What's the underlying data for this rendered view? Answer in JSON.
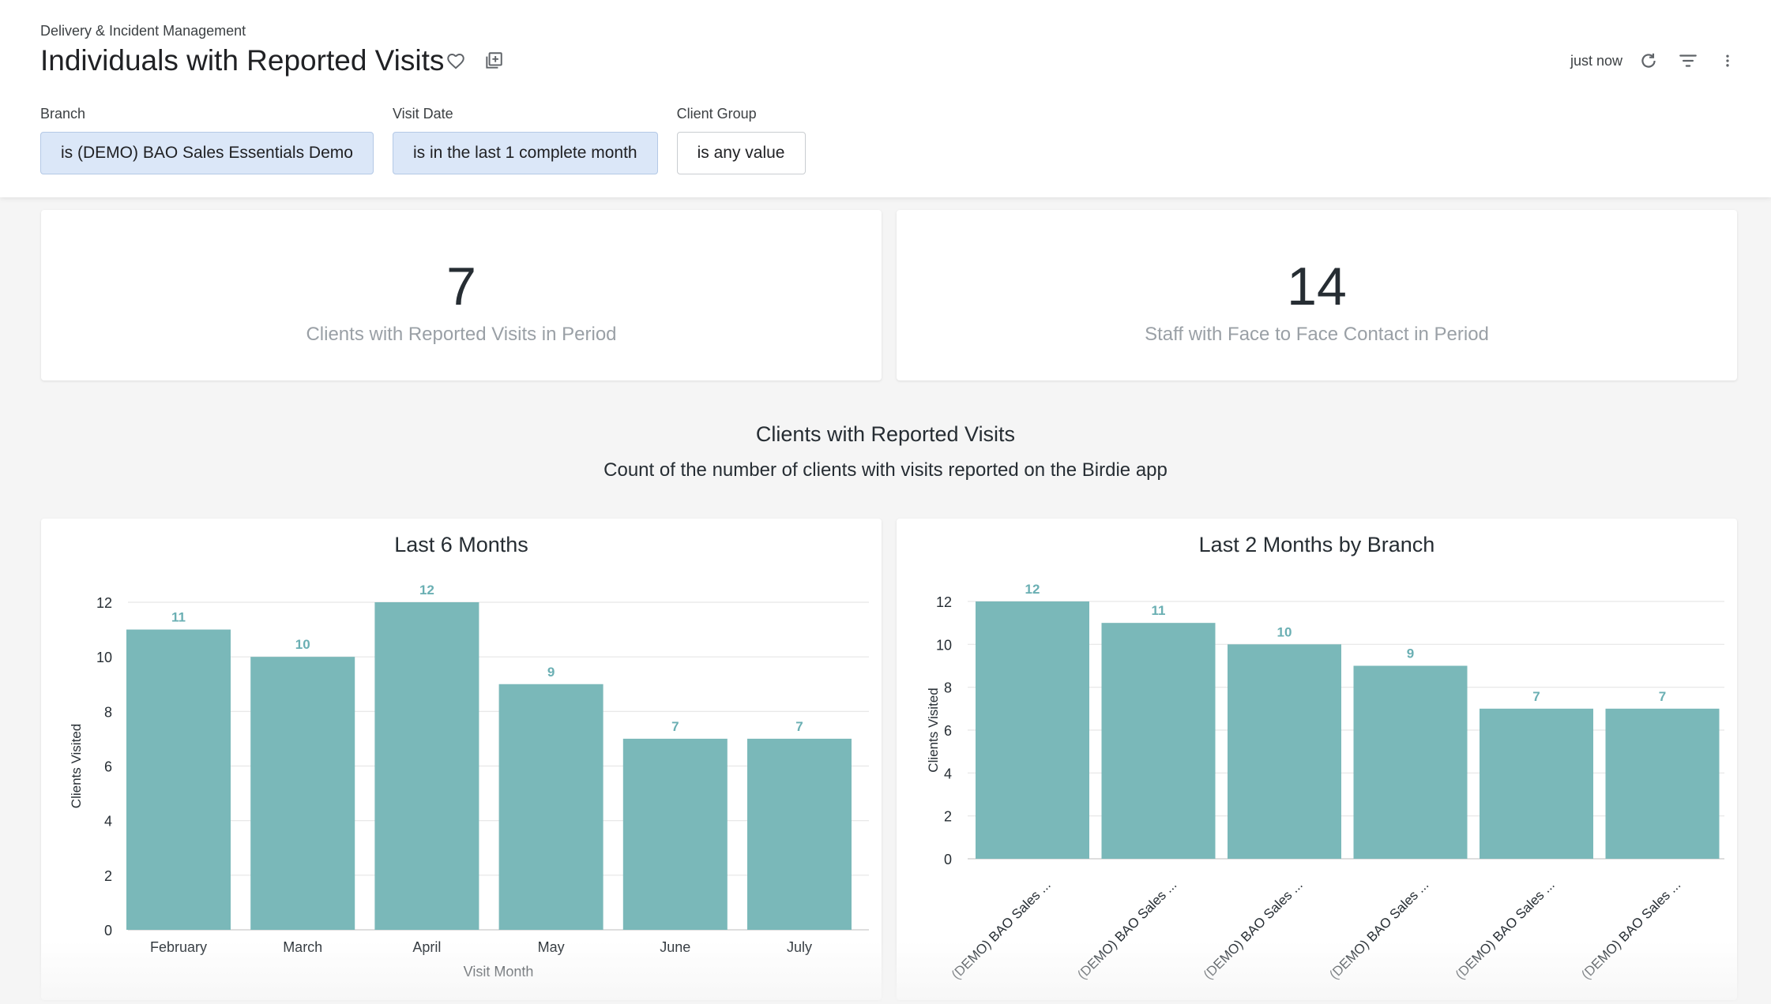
{
  "header": {
    "breadcrumb": "Delivery & Incident Management",
    "title": "Individuals with Reported Visits",
    "updated": "just now",
    "icons": [
      "heart-icon",
      "add-to-board-icon",
      "refresh-icon",
      "filter-icon",
      "more-vert-icon"
    ]
  },
  "filters": [
    {
      "label": "Branch",
      "value": "is (DEMO) BAO Sales Essentials Demo",
      "active": true
    },
    {
      "label": "Visit Date",
      "value": "is in the last 1 complete month",
      "active": true
    },
    {
      "label": "Client Group",
      "value": "is any value",
      "active": false
    }
  ],
  "kpis": [
    {
      "value": "7",
      "label": "Clients with Reported Visits in Period"
    },
    {
      "value": "14",
      "label": "Staff with Face to Face Contact in Period"
    }
  ],
  "section": {
    "title": "Clients with Reported Visits",
    "subtitle": "Count of the number of clients with visits reported on the Birdie app"
  },
  "colors": {
    "bar": "#7ab8b9",
    "label": "#6aafb3",
    "grid": "#e6e6e6",
    "axis": "#c9c9c9"
  },
  "chart_data": [
    {
      "type": "bar",
      "title": "Last 6 Months",
      "categories": [
        "February",
        "March",
        "April",
        "May",
        "June",
        "July"
      ],
      "values": [
        11,
        10,
        12,
        9,
        7,
        7
      ],
      "xlabel": "Visit Month",
      "ylabel": "Clients Visited",
      "ylim": [
        0,
        12
      ],
      "yticks": [
        0,
        2,
        4,
        6,
        8,
        10,
        12
      ],
      "grid": true,
      "data_labels": true
    },
    {
      "type": "bar",
      "title": "Last 2 Months by Branch",
      "categories": [
        "(DEMO) BAO Sales ...",
        "(DEMO) BAO Sales ...",
        "(DEMO) BAO Sales ...",
        "(DEMO) BAO Sales ...",
        "(DEMO) BAO Sales ...",
        "(DEMO) BAO Sales ..."
      ],
      "values": [
        12,
        11,
        10,
        9,
        7,
        7
      ],
      "xlabel": "",
      "ylabel": "Clients Visited",
      "ylim": [
        0,
        12
      ],
      "yticks": [
        0,
        2,
        4,
        6,
        8,
        10,
        12
      ],
      "grid": true,
      "data_labels": true
    }
  ]
}
